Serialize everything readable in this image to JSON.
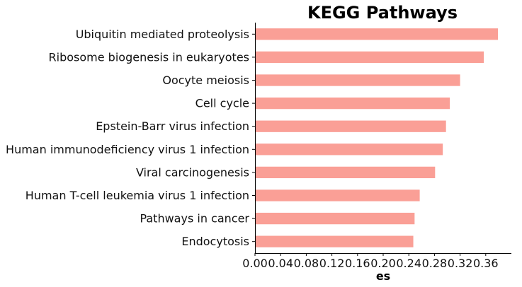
{
  "chart_data": {
    "type": "bar",
    "orientation": "horizontal",
    "title": "KEGG Pathways",
    "xlabel": "es",
    "ylabel": "",
    "categories": [
      "Ubiquitin mediated proteolysis",
      "Ribosome biogenesis in eukaryotes",
      "Oocyte meiosis",
      "Cell cycle",
      "Epstein-Barr virus infection",
      "Human immunodeficiency virus 1 infection",
      "Viral carcinogenesis",
      "Human T-cell leukemia virus 1 infection",
      "Pathways in cancer",
      "Endocytosis"
    ],
    "values": [
      0.379,
      0.357,
      0.32,
      0.304,
      0.298,
      0.293,
      0.281,
      0.257,
      0.249,
      0.247
    ],
    "xlim": [
      0,
      0.4
    ],
    "xticks": [
      "0.00",
      "0.04",
      "0.08",
      "0.12",
      "0.16",
      "0.20",
      "0.24",
      "0.28",
      "0.32",
      "0.36"
    ],
    "grid": false,
    "legend": "none",
    "bar_color": "#fa9f96"
  }
}
